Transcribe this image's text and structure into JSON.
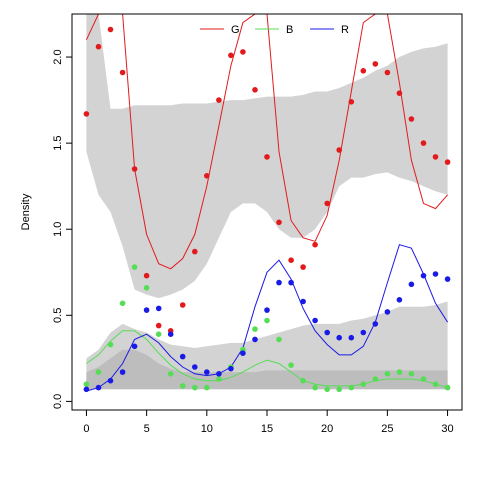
{
  "chart_data": {
    "type": "line",
    "title": "",
    "xlabel": "",
    "ylabel": "Density",
    "xlim": [
      -1.2,
      31.2
    ],
    "ylim": [
      -0.05,
      2.25
    ],
    "xticks": [
      "0",
      "5",
      "10",
      "15",
      "20",
      "25",
      "30"
    ],
    "yticks": [
      "0.0",
      "0.5",
      "1.0",
      "1.5",
      "2.0"
    ],
    "legend_position": "top",
    "bands": [
      {
        "name": "band-upper",
        "color": "#d3d3d3",
        "x": [
          0,
          1,
          2,
          3,
          4,
          5,
          6,
          7,
          8,
          9,
          10,
          11,
          12,
          13,
          14,
          15,
          16,
          17,
          18,
          19,
          20,
          21,
          22,
          23,
          24,
          25,
          26,
          27,
          28,
          29,
          30
        ],
        "lower": [
          1.45,
          1.2,
          1.1,
          0.9,
          0.65,
          0.62,
          0.6,
          0.62,
          0.65,
          0.7,
          0.8,
          0.95,
          1.1,
          1.15,
          1.15,
          1.1,
          1.0,
          0.95,
          0.95,
          1.0,
          1.1,
          1.25,
          1.3,
          1.3,
          1.32,
          1.33,
          1.3,
          1.28,
          1.25,
          1.22,
          1.2
        ],
        "upper": [
          2.25,
          2.25,
          1.7,
          1.7,
          1.72,
          1.72,
          1.72,
          1.72,
          1.73,
          1.73,
          1.73,
          1.74,
          1.75,
          1.75,
          1.76,
          1.77,
          1.77,
          1.77,
          1.78,
          1.8,
          1.8,
          1.82,
          1.85,
          1.88,
          1.92,
          1.95,
          2.0,
          2.03,
          2.05,
          2.06,
          2.08
        ]
      },
      {
        "name": "band-lower",
        "color": "#d3d3d3",
        "x": [
          0,
          1,
          2,
          3,
          4,
          5,
          6,
          7,
          8,
          9,
          10,
          11,
          12,
          13,
          14,
          15,
          16,
          17,
          18,
          19,
          20,
          21,
          22,
          23,
          24,
          25,
          26,
          27,
          28,
          29,
          30
        ],
        "lower": [
          0.07,
          0.07,
          0.07,
          0.07,
          0.07,
          0.07,
          0.07,
          0.07,
          0.07,
          0.07,
          0.07,
          0.07,
          0.07,
          0.07,
          0.07,
          0.07,
          0.07,
          0.07,
          0.07,
          0.07,
          0.07,
          0.07,
          0.07,
          0.07,
          0.07,
          0.07,
          0.07,
          0.07,
          0.07,
          0.07,
          0.07
        ],
        "upper": [
          0.25,
          0.3,
          0.4,
          0.45,
          0.42,
          0.4,
          0.36,
          0.33,
          0.32,
          0.31,
          0.32,
          0.33,
          0.34,
          0.34,
          0.36,
          0.38,
          0.4,
          0.42,
          0.44,
          0.45,
          0.45,
          0.45,
          0.47,
          0.48,
          0.5,
          0.52,
          0.55,
          0.55,
          0.55,
          0.56,
          0.58
        ]
      },
      {
        "name": "band-dark",
        "color": "#bdbdbd",
        "x": [
          0,
          1,
          2,
          3,
          4,
          5,
          6,
          7,
          8,
          9,
          10,
          11,
          12,
          13,
          14,
          15,
          16,
          17,
          18,
          19,
          20,
          21,
          22,
          23,
          24,
          25,
          26,
          27,
          28,
          29,
          30
        ],
        "lower": [
          0.07,
          0.07,
          0.07,
          0.07,
          0.07,
          0.07,
          0.07,
          0.07,
          0.07,
          0.07,
          0.07,
          0.07,
          0.07,
          0.07,
          0.07,
          0.07,
          0.07,
          0.07,
          0.07,
          0.07,
          0.07,
          0.07,
          0.07,
          0.07,
          0.07,
          0.07,
          0.07,
          0.07,
          0.07,
          0.07,
          0.07
        ],
        "upper": [
          0.17,
          0.2,
          0.25,
          0.3,
          0.3,
          0.27,
          0.22,
          0.19,
          0.17,
          0.17,
          0.17,
          0.17,
          0.17,
          0.17,
          0.17,
          0.18,
          0.18,
          0.18,
          0.18,
          0.18,
          0.18,
          0.18,
          0.18,
          0.18,
          0.18,
          0.18,
          0.18,
          0.18,
          0.18,
          0.18,
          0.18
        ]
      }
    ],
    "series": [
      {
        "name": "G",
        "color": "#e31a1c",
        "x": [
          0,
          1,
          2,
          3,
          4,
          5,
          6,
          7,
          8,
          9,
          10,
          11,
          12,
          13,
          14,
          15,
          16,
          17,
          18,
          19,
          20,
          21,
          22,
          23,
          24,
          25,
          26,
          27,
          28,
          29,
          30
        ],
        "line": [
          2.1,
          2.25,
          2.25,
          2.25,
          1.35,
          0.97,
          0.8,
          0.77,
          0.83,
          0.97,
          1.25,
          1.6,
          1.95,
          2.2,
          2.25,
          2.25,
          1.45,
          1.05,
          0.95,
          0.93,
          1.08,
          1.4,
          1.8,
          2.2,
          2.25,
          2.25,
          1.85,
          1.4,
          1.15,
          1.12,
          1.2
        ],
        "points": [
          1.67,
          2.06,
          2.16,
          1.91,
          1.35,
          0.73,
          0.44,
          0.41,
          0.56,
          0.87,
          1.31,
          1.75,
          2.01,
          2.03,
          1.81,
          1.42,
          1.04,
          0.82,
          0.78,
          0.91,
          1.15,
          1.46,
          1.74,
          1.92,
          1.96,
          1.91,
          1.79,
          1.64,
          1.5,
          1.42,
          1.39
        ]
      },
      {
        "name": "B",
        "color": "#55dd55",
        "x": [
          0,
          1,
          2,
          3,
          4,
          5,
          6,
          7,
          8,
          9,
          10,
          11,
          12,
          13,
          14,
          15,
          16,
          17,
          18,
          19,
          20,
          21,
          22,
          23,
          24,
          25,
          26,
          27,
          28,
          29,
          30
        ],
        "line": [
          0.22,
          0.27,
          0.35,
          0.41,
          0.41,
          0.36,
          0.28,
          0.21,
          0.16,
          0.13,
          0.12,
          0.12,
          0.14,
          0.17,
          0.21,
          0.24,
          0.22,
          0.17,
          0.12,
          0.1,
          0.09,
          0.09,
          0.09,
          0.1,
          0.12,
          0.13,
          0.13,
          0.13,
          0.12,
          0.1,
          0.08
        ],
        "points": [
          0.1,
          0.17,
          0.33,
          0.57,
          0.78,
          0.66,
          0.39,
          0.16,
          0.09,
          0.08,
          0.08,
          0.13,
          0.2,
          0.3,
          0.42,
          0.47,
          0.36,
          0.21,
          0.12,
          0.08,
          0.07,
          0.07,
          0.08,
          0.1,
          0.13,
          0.16,
          0.17,
          0.16,
          0.13,
          0.1,
          0.08
        ]
      },
      {
        "name": "R",
        "color": "#1a1ae6",
        "x": [
          0,
          1,
          2,
          3,
          4,
          5,
          6,
          7,
          8,
          9,
          10,
          11,
          12,
          13,
          14,
          15,
          16,
          17,
          18,
          19,
          20,
          21,
          22,
          23,
          24,
          25,
          26,
          27,
          28,
          29,
          30
        ],
        "line": [
          0.06,
          0.08,
          0.13,
          0.22,
          0.36,
          0.39,
          0.34,
          0.26,
          0.2,
          0.16,
          0.15,
          0.16,
          0.2,
          0.31,
          0.55,
          0.75,
          0.82,
          0.71,
          0.54,
          0.41,
          0.33,
          0.27,
          0.27,
          0.32,
          0.46,
          0.69,
          0.91,
          0.89,
          0.74,
          0.57,
          0.46
        ],
        "points": [
          0.07,
          0.08,
          0.12,
          0.17,
          0.32,
          0.53,
          0.54,
          0.39,
          0.26,
          0.2,
          0.17,
          0.16,
          0.19,
          0.28,
          0.36,
          0.53,
          0.69,
          0.69,
          0.58,
          0.47,
          0.4,
          0.37,
          0.37,
          0.4,
          0.45,
          0.52,
          0.59,
          0.68,
          0.73,
          0.74,
          0.71
        ]
      }
    ]
  }
}
